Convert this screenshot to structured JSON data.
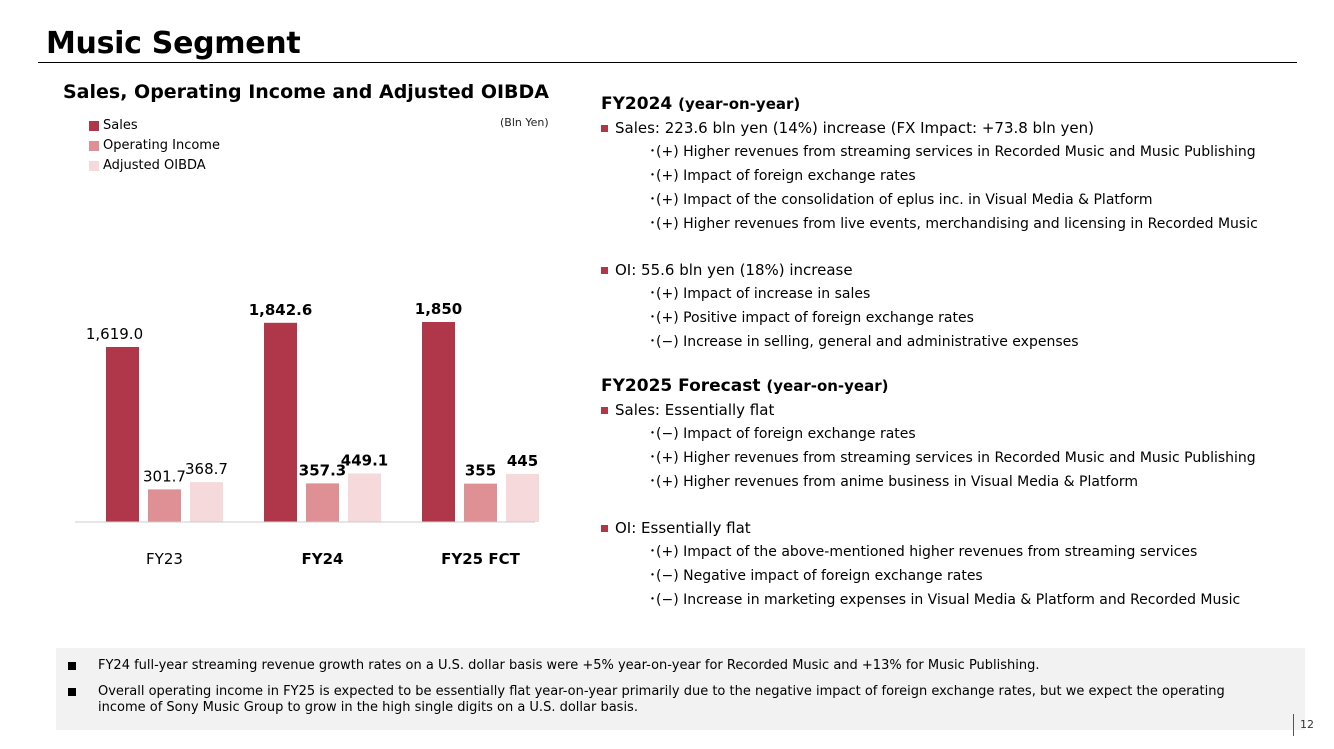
{
  "page": {
    "title": "Music Segment",
    "page_number": "12"
  },
  "chart_data": {
    "type": "bar",
    "title": "Sales, Operating Income and Adjusted OIBDA",
    "unit": "(Bln Yen)",
    "categories": [
      "FY23",
      "FY24",
      "FY25 FCT"
    ],
    "category_bold": [
      false,
      true,
      true
    ],
    "series": [
      {
        "name": "Sales",
        "color": "#b0374a",
        "values": [
          1619.0,
          1842.6,
          1850
        ],
        "labels": [
          "1,619.0",
          "1,842.6",
          "1,850"
        ]
      },
      {
        "name": "Operating Income",
        "color": "#df9095",
        "values": [
          301.7,
          357.3,
          355
        ],
        "labels": [
          "301.7",
          "357.3",
          "355"
        ]
      },
      {
        "name": "Adjusted OIBDA",
        "color": "#f5d9db",
        "values": [
          368.7,
          449.1,
          445
        ],
        "labels": [
          "368.7",
          "449.1",
          "445"
        ]
      }
    ],
    "ylim": [
      0,
      1850
    ],
    "legend": "top-left",
    "grid": false
  },
  "fy2024": {
    "heading": "FY2024",
    "heading_sub": "(year-on-year)",
    "sales": {
      "text": "Sales: 223.6 bln yen (14%) increase (FX Impact: +73.8 bln yen)",
      "items": [
        "･(+) Higher revenues from streaming services in Recorded Music and Music Publishing",
        "･(+) Impact of foreign exchange rates",
        "･(+) Impact of the consolidation of eplus inc. in Visual Media & Platform",
        "･(+) Higher revenues from live events, merchandising and licensing in Recorded Music"
      ]
    },
    "oi": {
      "text": "OI: 55.6 bln yen (18%) increase",
      "items": [
        "･(+) Impact of increase in sales",
        "･(+) Positive impact of foreign exchange rates",
        "･(−) Increase in selling, general and administrative expenses"
      ]
    }
  },
  "fy2025": {
    "heading": "FY2025 Forecast",
    "heading_sub": "(year-on-year)",
    "sales": {
      "text": "Sales: Essentially flat",
      "items": [
        "･(−) Impact of foreign exchange rates",
        "･(+) Higher revenues from streaming services in Recorded Music and Music Publishing",
        "･(+) Higher revenues from anime business in Visual Media & Platform"
      ]
    },
    "oi": {
      "text": "OI: Essentially flat",
      "items": [
        "･(+) Impact of the above-mentioned higher revenues from streaming services",
        "･(−) Negative impact of foreign exchange rates",
        "･(−) Increase in marketing expenses in Visual Media & Platform and Recorded Music"
      ]
    }
  },
  "notes": [
    "FY24 full-year streaming revenue growth rates on a U.S. dollar basis were +5% year-on-year for Recorded Music and +13% for Music Publishing.",
    "Overall operating income in FY25 is expected to be essentially flat year-on-year primarily due to the negative impact of foreign exchange rates, but we expect the operating income of Sony Music Group to grow in the high single digits on a U.S. dollar basis."
  ]
}
